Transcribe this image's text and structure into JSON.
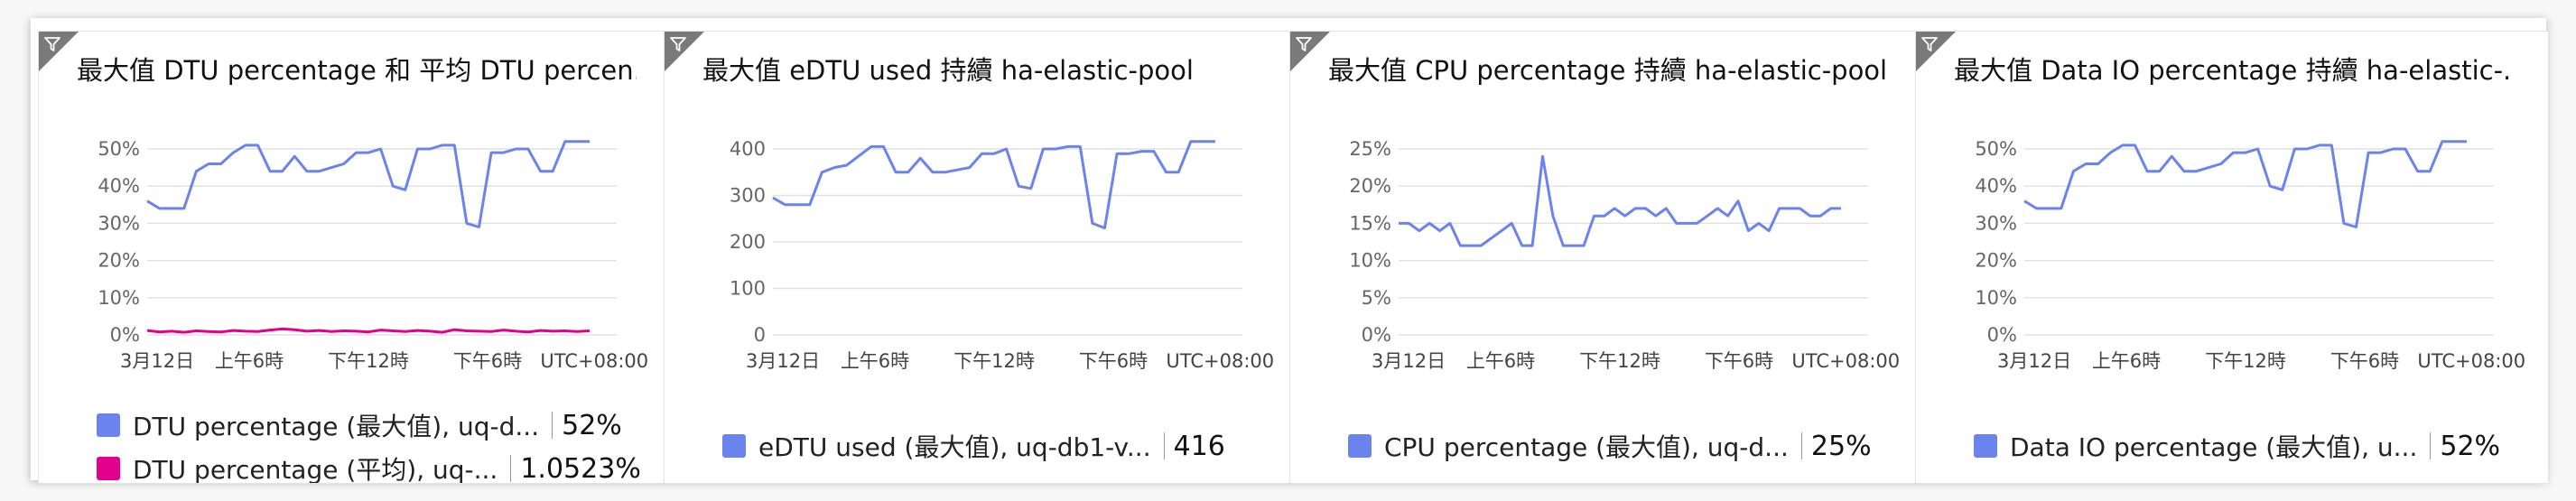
{
  "tiles": [
    {
      "title": "最大值 DTU percentage 和 平均 DTU percen...",
      "legend": [
        {
          "label": "DTU percentage (最大值), uq-d...",
          "value": "52%",
          "color": "#6b84ed"
        },
        {
          "label": "DTU percentage (平均), uq-...",
          "value": "1.0523%",
          "color": "#e3008c"
        }
      ]
    },
    {
      "title": "最大值 eDTU used 持續 ha-elastic-pool",
      "legend": [
        {
          "label": "eDTU used (最大值), uq-db1-v...",
          "value": "416",
          "color": "#6b84ed"
        }
      ]
    },
    {
      "title": "最大值 CPU percentage 持續 ha-elastic-pool",
      "legend": [
        {
          "label": "CPU percentage (最大值), uq-d...",
          "value": "25%",
          "color": "#6b84ed"
        }
      ]
    },
    {
      "title": "最大值 Data IO percentage 持續 ha-elastic-...",
      "legend": [
        {
          "label": "Data IO percentage (最大值), u...",
          "value": "52%",
          "color": "#6b84ed"
        }
      ]
    }
  ],
  "chart_data": [
    {
      "type": "line",
      "title": "最大值 DTU percentage 和 平均 DTU percen...",
      "ylim": [
        0,
        50
      ],
      "y_ticks": [
        "0%",
        "10%",
        "20%",
        "30%",
        "40%",
        "50%"
      ],
      "x_ticks": [
        "3月12日",
        "上午6時",
        "下午12時",
        "下午6時",
        "UTC+08:00"
      ],
      "series": [
        {
          "name": "DTU percentage (最大值), uq-d...",
          "color": "#6b84ed",
          "values": [
            36,
            34,
            34,
            34,
            44,
            46,
            46,
            49,
            51,
            51,
            44,
            44,
            48,
            44,
            44,
            45,
            46,
            49,
            49,
            50,
            40,
            39,
            50,
            50,
            51,
            51,
            30,
            29,
            49,
            49,
            50,
            50,
            44,
            44,
            52,
            52,
            52
          ]
        },
        {
          "name": "DTU percentage (平均), uq-...",
          "color": "#e3008c",
          "values": [
            1.2,
            0.8,
            1.0,
            0.7,
            1.1,
            0.9,
            0.8,
            1.2,
            1.0,
            0.9,
            1.3,
            1.6,
            1.4,
            1.0,
            1.2,
            0.9,
            1.1,
            1.0,
            0.8,
            1.3,
            1.1,
            0.9,
            1.2,
            1.0,
            0.7,
            1.4,
            1.1,
            1.0,
            0.9,
            1.3,
            1.0,
            0.8,
            1.2,
            1.0,
            1.1,
            0.9,
            1.1
          ]
        }
      ]
    },
    {
      "type": "line",
      "title": "最大值 eDTU used 持續 ha-elastic-pool",
      "ylim": [
        0,
        400
      ],
      "y_ticks": [
        "0",
        "100",
        "200",
        "300",
        "400"
      ],
      "x_ticks": [
        "3月12日",
        "上午6時",
        "下午12時",
        "下午6時",
        "UTC+08:00"
      ],
      "series": [
        {
          "name": "eDTU used (最大值), uq-db1-v...",
          "color": "#6b84ed",
          "values": [
            295,
            280,
            280,
            280,
            350,
            360,
            365,
            385,
            405,
            405,
            350,
            350,
            380,
            350,
            350,
            355,
            360,
            390,
            390,
            400,
            320,
            315,
            400,
            400,
            405,
            405,
            240,
            230,
            390,
            390,
            395,
            395,
            350,
            350,
            416,
            416,
            416
          ]
        }
      ]
    },
    {
      "type": "line",
      "title": "最大值 CPU percentage 持續 ha-elastic-pool",
      "ylim": [
        0,
        25
      ],
      "y_ticks": [
        "0%",
        "5%",
        "10%",
        "15%",
        "20%",
        "25%"
      ],
      "x_ticks": [
        "3月12日",
        "上午6時",
        "下午12時",
        "下午6時",
        "UTC+08:00"
      ],
      "series": [
        {
          "name": "CPU percentage (最大值), uq-d...",
          "color": "#6b84ed",
          "values": [
            15,
            15,
            14,
            15,
            14,
            15,
            12,
            12,
            12,
            13,
            14,
            15,
            12,
            12,
            24,
            16,
            12,
            12,
            12,
            16,
            16,
            17,
            16,
            17,
            17,
            16,
            17,
            15,
            15,
            15,
            16,
            17,
            16,
            18,
            14,
            15,
            14,
            17,
            17,
            17,
            16,
            16,
            17,
            17
          ]
        }
      ]
    },
    {
      "type": "line",
      "title": "最大值 Data IO percentage 持續 ha-elastic-...",
      "ylim": [
        0,
        50
      ],
      "y_ticks": [
        "0%",
        "10%",
        "20%",
        "30%",
        "40%",
        "50%"
      ],
      "x_ticks": [
        "3月12日",
        "上午6時",
        "下午12時",
        "下午6時",
        "UTC+08:00"
      ],
      "series": [
        {
          "name": "Data IO percentage (最大值), u...",
          "color": "#6b84ed",
          "values": [
            36,
            34,
            34,
            34,
            44,
            46,
            46,
            49,
            51,
            51,
            44,
            44,
            48,
            44,
            44,
            45,
            46,
            49,
            49,
            50,
            40,
            39,
            50,
            50,
            51,
            51,
            30,
            29,
            49,
            49,
            50,
            50,
            44,
            44,
            52,
            52,
            52
          ]
        }
      ]
    }
  ]
}
